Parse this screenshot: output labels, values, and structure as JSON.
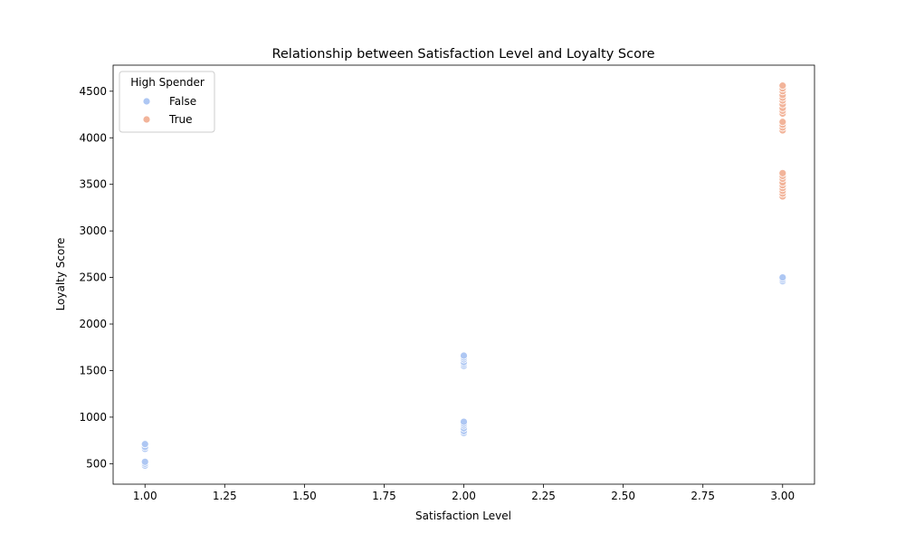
{
  "chart_data": {
    "type": "scatter",
    "title": "Relationship between Satisfaction Level and Loyalty Score",
    "xlabel": "Satisfaction Level",
    "ylabel": "Loyalty Score",
    "xlim": [
      0.9,
      3.1
    ],
    "ylim": [
      280,
      4780
    ],
    "xticks": [
      "1.00",
      "1.25",
      "1.50",
      "1.75",
      "2.00",
      "2.25",
      "2.50",
      "2.75",
      "3.00"
    ],
    "yticks": [
      "500",
      "1000",
      "1500",
      "2000",
      "2500",
      "3000",
      "3500",
      "4000",
      "4500"
    ],
    "grid": false,
    "legend": {
      "title": "High Spender",
      "position": "top-left"
    },
    "series": [
      {
        "name": "False",
        "color": "#aec7f3",
        "points": [
          {
            "x": 1,
            "y": 480
          },
          {
            "x": 1,
            "y": 500
          },
          {
            "x": 1,
            "y": 520
          },
          {
            "x": 1,
            "y": 660
          },
          {
            "x": 1,
            "y": 680
          },
          {
            "x": 1,
            "y": 710
          },
          {
            "x": 2,
            "y": 830
          },
          {
            "x": 2,
            "y": 850
          },
          {
            "x": 2,
            "y": 880
          },
          {
            "x": 2,
            "y": 910
          },
          {
            "x": 2,
            "y": 930
          },
          {
            "x": 2,
            "y": 950
          },
          {
            "x": 2,
            "y": 1550
          },
          {
            "x": 2,
            "y": 1570
          },
          {
            "x": 2,
            "y": 1590
          },
          {
            "x": 2,
            "y": 1620
          },
          {
            "x": 2,
            "y": 1640
          },
          {
            "x": 2,
            "y": 1660
          },
          {
            "x": 3,
            "y": 2460
          },
          {
            "x": 3,
            "y": 2480
          },
          {
            "x": 3,
            "y": 2500
          }
        ]
      },
      {
        "name": "True",
        "color": "#f2b49a",
        "points": [
          {
            "x": 3,
            "y": 3370
          },
          {
            "x": 3,
            "y": 3400
          },
          {
            "x": 3,
            "y": 3430
          },
          {
            "x": 3,
            "y": 3460
          },
          {
            "x": 3,
            "y": 3490
          },
          {
            "x": 3,
            "y": 3520
          },
          {
            "x": 3,
            "y": 3560
          },
          {
            "x": 3,
            "y": 3590
          },
          {
            "x": 3,
            "y": 3620
          },
          {
            "x": 3,
            "y": 4080
          },
          {
            "x": 3,
            "y": 4110
          },
          {
            "x": 3,
            "y": 4140
          },
          {
            "x": 3,
            "y": 4170
          },
          {
            "x": 3,
            "y": 4260
          },
          {
            "x": 3,
            "y": 4290
          },
          {
            "x": 3,
            "y": 4320
          },
          {
            "x": 3,
            "y": 4360
          },
          {
            "x": 3,
            "y": 4400
          },
          {
            "x": 3,
            "y": 4430
          },
          {
            "x": 3,
            "y": 4460
          },
          {
            "x": 3,
            "y": 4500
          },
          {
            "x": 3,
            "y": 4530
          },
          {
            "x": 3,
            "y": 4560
          }
        ]
      }
    ]
  }
}
